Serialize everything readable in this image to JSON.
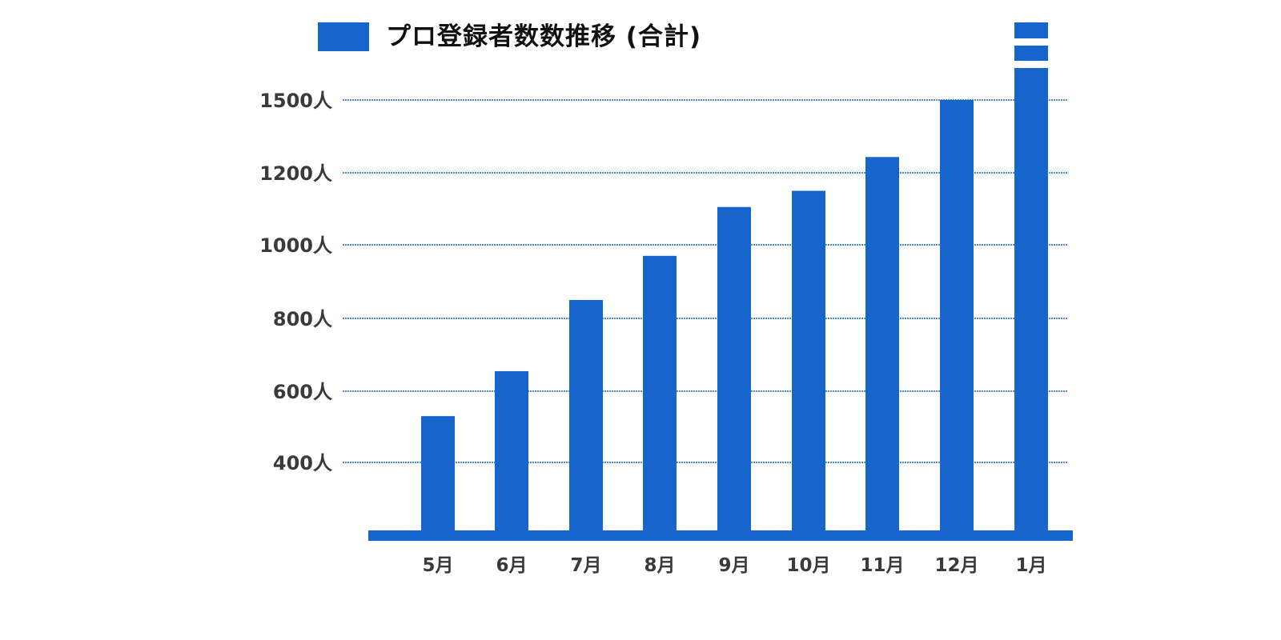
{
  "colors": {
    "bar": "#1565cc",
    "grid": "#1565cc",
    "baseline": "#1565cc",
    "text": "#3a3a3a",
    "title": "#111111",
    "background": "#ffffff"
  },
  "chart_data": {
    "type": "bar",
    "title": "",
    "xlabel": "",
    "ylabel": "",
    "axis_break": true,
    "grid": true,
    "legend_position": "top-left",
    "series": [
      {
        "name": "プロ登録者数数推移 (合計)",
        "values": [
          530,
          655,
          850,
          970,
          1105,
          1150,
          1265,
          1500,
          1700
        ]
      }
    ],
    "categories": [
      "5月",
      "6月",
      "7月",
      "8月",
      "9月",
      "10月",
      "11月",
      "12月",
      "1月"
    ],
    "yticks": [
      {
        "value": 400,
        "label": "400人"
      },
      {
        "value": 600,
        "label": "600人"
      },
      {
        "value": 800,
        "label": "800人"
      },
      {
        "value": 1000,
        "label": "1000人"
      },
      {
        "value": 1200,
        "label": "1200人"
      },
      {
        "value": 1500,
        "label": "1500人"
      }
    ]
  }
}
